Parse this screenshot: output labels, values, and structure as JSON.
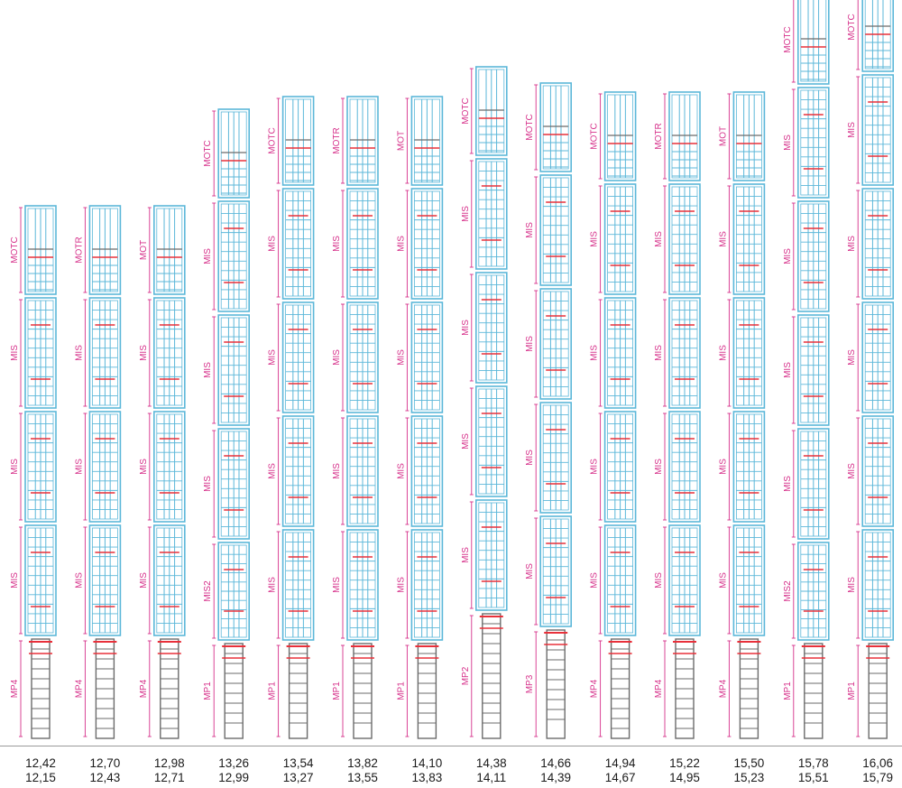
{
  "colors": {
    "cage": "#5bb7d9",
    "ring": "#e8303a",
    "ladder": "#6b6b6b",
    "dimension": "#d6308a"
  },
  "columns": [
    {
      "height_top": "12,42",
      "height_bottom": "12,15",
      "modules": [
        {
          "label": "MOTC",
          "type": "top"
        },
        {
          "label": "MIS",
          "type": "cage"
        },
        {
          "label": "MIS",
          "type": "cage"
        },
        {
          "label": "MIS",
          "type": "cage"
        },
        {
          "label": "MP4",
          "type": "base"
        }
      ]
    },
    {
      "height_top": "12,70",
      "height_bottom": "12,43",
      "modules": [
        {
          "label": "MOTR",
          "type": "top"
        },
        {
          "label": "MIS",
          "type": "cage"
        },
        {
          "label": "MIS",
          "type": "cage"
        },
        {
          "label": "MIS",
          "type": "cage"
        },
        {
          "label": "MP4",
          "type": "base"
        }
      ]
    },
    {
      "height_top": "12,98",
      "height_bottom": "12,71",
      "modules": [
        {
          "label": "MOT",
          "type": "top"
        },
        {
          "label": "MIS",
          "type": "cage"
        },
        {
          "label": "MIS",
          "type": "cage"
        },
        {
          "label": "MIS",
          "type": "cage"
        },
        {
          "label": "MP4",
          "type": "base"
        }
      ]
    },
    {
      "height_top": "13,26",
      "height_bottom": "12,99",
      "modules": [
        {
          "label": "MOTC",
          "type": "top"
        },
        {
          "label": "MIS",
          "type": "cage"
        },
        {
          "label": "MIS",
          "type": "cage"
        },
        {
          "label": "MIS",
          "type": "cage"
        },
        {
          "label": "MIS2",
          "type": "cage"
        },
        {
          "label": "MP1",
          "type": "base"
        }
      ]
    },
    {
      "height_top": "13,54",
      "height_bottom": "13,27",
      "modules": [
        {
          "label": "MOTC",
          "type": "top"
        },
        {
          "label": "MIS",
          "type": "cage"
        },
        {
          "label": "MIS",
          "type": "cage"
        },
        {
          "label": "MIS",
          "type": "cage"
        },
        {
          "label": "MIS",
          "type": "cage"
        },
        {
          "label": "MP1",
          "type": "base"
        }
      ]
    },
    {
      "height_top": "13,82",
      "height_bottom": "13,55",
      "modules": [
        {
          "label": "MOTR",
          "type": "top"
        },
        {
          "label": "MIS",
          "type": "cage"
        },
        {
          "label": "MIS",
          "type": "cage"
        },
        {
          "label": "MIS",
          "type": "cage"
        },
        {
          "label": "MIS",
          "type": "cage"
        },
        {
          "label": "MP1",
          "type": "base"
        }
      ]
    },
    {
      "height_top": "14,10",
      "height_bottom": "13,83",
      "modules": [
        {
          "label": "MOT",
          "type": "top"
        },
        {
          "label": "MIS",
          "type": "cage"
        },
        {
          "label": "MIS",
          "type": "cage"
        },
        {
          "label": "MIS",
          "type": "cage"
        },
        {
          "label": "MIS",
          "type": "cage"
        },
        {
          "label": "MP1",
          "type": "base"
        }
      ]
    },
    {
      "height_top": "14,38",
      "height_bottom": "14,11",
      "modules": [
        {
          "label": "MOTC",
          "type": "top"
        },
        {
          "label": "MIS",
          "type": "cage"
        },
        {
          "label": "MIS",
          "type": "cage"
        },
        {
          "label": "MIS",
          "type": "cage"
        },
        {
          "label": "MIS",
          "type": "cage"
        },
        {
          "label": "MP2",
          "type": "base"
        }
      ]
    },
    {
      "height_top": "14,66",
      "height_bottom": "14,39",
      "modules": [
        {
          "label": "MOTC",
          "type": "top"
        },
        {
          "label": "MIS",
          "type": "cage"
        },
        {
          "label": "MIS",
          "type": "cage"
        },
        {
          "label": "MIS",
          "type": "cage"
        },
        {
          "label": "MIS",
          "type": "cage"
        },
        {
          "label": "MP3",
          "type": "base"
        }
      ]
    },
    {
      "height_top": "14,94",
      "height_bottom": "14,67",
      "modules": [
        {
          "label": "MOTC",
          "type": "top"
        },
        {
          "label": "MIS",
          "type": "cage"
        },
        {
          "label": "MIS",
          "type": "cage"
        },
        {
          "label": "MIS",
          "type": "cage"
        },
        {
          "label": "MIS",
          "type": "cage"
        },
        {
          "label": "MP4",
          "type": "base"
        }
      ]
    },
    {
      "height_top": "15,22",
      "height_bottom": "14,95",
      "modules": [
        {
          "label": "MOTR",
          "type": "top"
        },
        {
          "label": "MIS",
          "type": "cage"
        },
        {
          "label": "MIS",
          "type": "cage"
        },
        {
          "label": "MIS",
          "type": "cage"
        },
        {
          "label": "MIS",
          "type": "cage"
        },
        {
          "label": "MP4",
          "type": "base"
        }
      ]
    },
    {
      "height_top": "15,50",
      "height_bottom": "15,23",
      "modules": [
        {
          "label": "MOT",
          "type": "top"
        },
        {
          "label": "MIS",
          "type": "cage"
        },
        {
          "label": "MIS",
          "type": "cage"
        },
        {
          "label": "MIS",
          "type": "cage"
        },
        {
          "label": "MIS",
          "type": "cage"
        },
        {
          "label": "MP4",
          "type": "base"
        }
      ]
    },
    {
      "height_top": "15,78",
      "height_bottom": "15,51",
      "modules": [
        {
          "label": "MOTC",
          "type": "top"
        },
        {
          "label": "MIS",
          "type": "cage"
        },
        {
          "label": "MIS",
          "type": "cage"
        },
        {
          "label": "MIS",
          "type": "cage"
        },
        {
          "label": "MIS",
          "type": "cage"
        },
        {
          "label": "MIS2",
          "type": "cage"
        },
        {
          "label": "MP1",
          "type": "base"
        }
      ]
    },
    {
      "height_top": "16,06",
      "height_bottom": "15,79",
      "modules": [
        {
          "label": "MOTC",
          "type": "top"
        },
        {
          "label": "MIS",
          "type": "cage"
        },
        {
          "label": "MIS",
          "type": "cage"
        },
        {
          "label": "MIS",
          "type": "cage"
        },
        {
          "label": "MIS",
          "type": "cage"
        },
        {
          "label": "MIS",
          "type": "cage"
        },
        {
          "label": "MP1",
          "type": "base"
        }
      ]
    }
  ]
}
